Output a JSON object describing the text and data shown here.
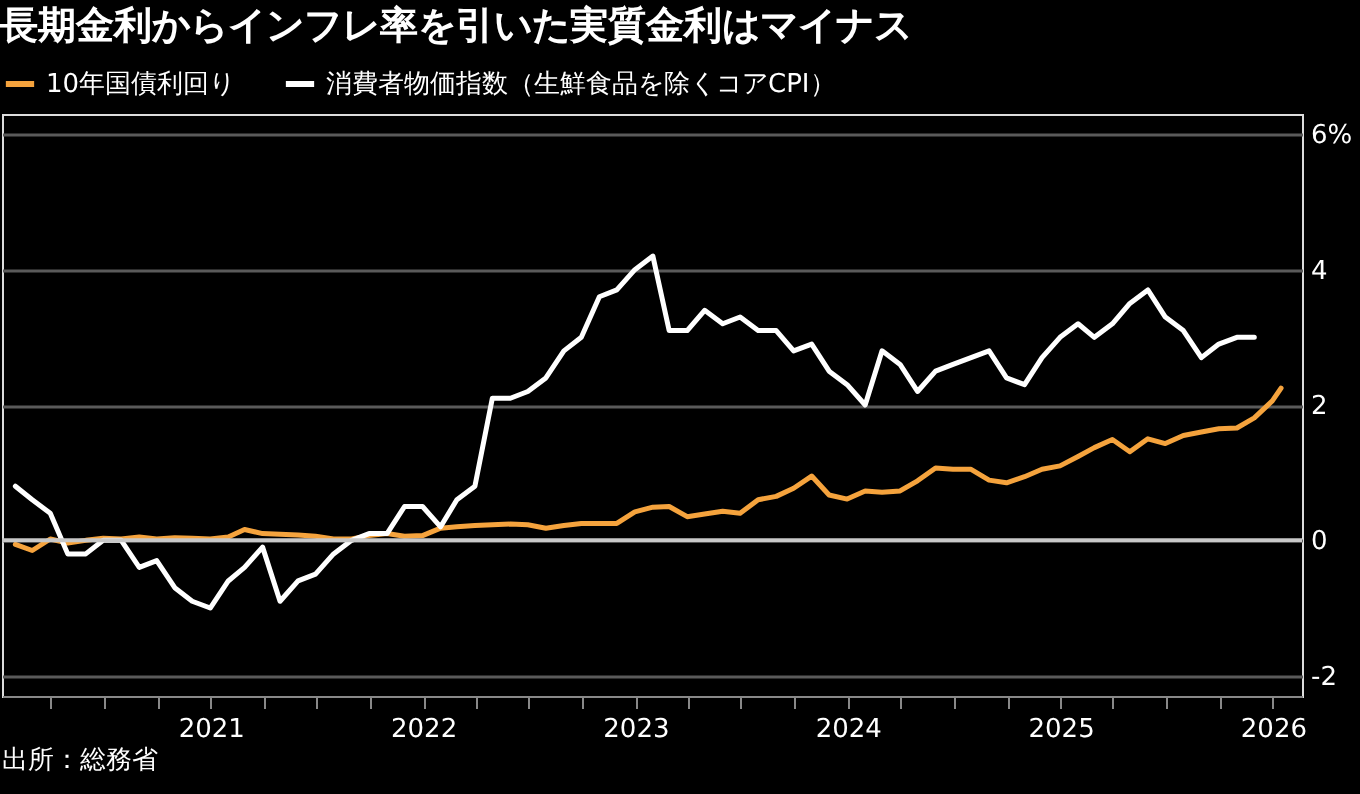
{
  "chart_data": {
    "type": "line",
    "title": "長期金利からインフレ率を引いた実質金利はマイナス",
    "annotations": [
      "出所：総務省"
    ],
    "legend": "top left",
    "grid": "y",
    "line_style": "solid",
    "marker": "none",
    "xlim": [
      "2020-01-08",
      "2026-02-20"
    ],
    "xticks": [
      {
        "value": "2020-04",
        "label": null
      },
      {
        "value": "2020-07",
        "label": null
      },
      {
        "value": "2020-10",
        "label": null
      },
      "2021",
      {
        "value": "2021-04",
        "label": null
      },
      {
        "value": "2021-07",
        "label": null
      },
      {
        "value": "2021-10",
        "label": null
      },
      "2022",
      {
        "value": "2022-04",
        "label": null
      },
      {
        "value": "2022-07",
        "label": null
      },
      {
        "value": "2022-10",
        "label": null
      },
      "2023",
      {
        "value": "2023-04",
        "label": null
      },
      {
        "value": "2023-07",
        "label": null
      },
      {
        "value": "2023-10",
        "label": null
      },
      "2024",
      {
        "value": "2024-04",
        "label": null
      },
      {
        "value": "2024-07",
        "label": null
      },
      {
        "value": "2024-10",
        "label": null
      },
      "2025",
      {
        "value": "2025-04",
        "label": null
      },
      {
        "value": "2025-07",
        "label": null
      },
      {
        "value": "2025-10",
        "label": null
      },
      "2026"
    ],
    "ylim": [
      -2.3,
      6.3
    ],
    "yticks": [
      -2,
      0,
      2,
      4,
      {
        "value": 6,
        "label": "6%"
      }
    ],
    "ref_lines": [
      {
        "axis": "y",
        "value": 0,
        "label": null,
        "color": "#c8c8c8"
      }
    ],
    "series": [
      {
        "name": "10年国債利回り",
        "color": "#f5a33d",
        "x": [
          "2020-01-31",
          "2020-02-29",
          "2020-03-31",
          "2020-04-30",
          "2020-05-31",
          "2020-06-30",
          "2020-07-31",
          "2020-08-31",
          "2020-09-30",
          "2020-10-31",
          "2020-11-30",
          "2020-12-31",
          "2021-01-31",
          "2021-02-28",
          "2021-03-31",
          "2021-04-30",
          "2021-05-31",
          "2021-06-30",
          "2021-07-31",
          "2021-08-31",
          "2021-09-30",
          "2021-10-31",
          "2021-11-30",
          "2021-12-31",
          "2022-01-31",
          "2022-02-28",
          "2022-03-31",
          "2022-04-30",
          "2022-05-31",
          "2022-06-30",
          "2022-07-31",
          "2022-08-31",
          "2022-09-30",
          "2022-10-31",
          "2022-11-30",
          "2022-12-31",
          "2023-01-31",
          "2023-02-28",
          "2023-03-31",
          "2023-04-30",
          "2023-05-31",
          "2023-06-30",
          "2023-07-31",
          "2023-08-31",
          "2023-09-30",
          "2023-10-31",
          "2023-11-30",
          "2023-12-31",
          "2024-01-31",
          "2024-02-29",
          "2024-03-31",
          "2024-04-30",
          "2024-05-31",
          "2024-06-30",
          "2024-07-31",
          "2024-08-31",
          "2024-09-30",
          "2024-10-31",
          "2024-11-30",
          "2024-12-31",
          "2025-01-31",
          "2025-02-28",
          "2025-03-31",
          "2025-04-30",
          "2025-05-31",
          "2025-06-30",
          "2025-07-31",
          "2025-08-31",
          "2025-09-30",
          "2025-10-31",
          "2025-11-30",
          "2025-12-31",
          "2026-01-15"
        ],
        "values": [
          -0.06,
          -0.15,
          0.02,
          -0.04,
          0.0,
          0.03,
          0.02,
          0.05,
          0.02,
          0.04,
          0.03,
          0.02,
          0.05,
          0.16,
          0.1,
          0.09,
          0.08,
          0.06,
          0.02,
          0.02,
          0.07,
          0.1,
          0.06,
          0.07,
          0.18,
          0.2,
          0.22,
          0.23,
          0.24,
          0.23,
          0.18,
          0.22,
          0.25,
          0.25,
          0.25,
          0.42,
          0.49,
          0.5,
          0.35,
          0.39,
          0.43,
          0.4,
          0.6,
          0.65,
          0.77,
          0.95,
          0.67,
          0.61,
          0.73,
          0.71,
          0.73,
          0.88,
          1.07,
          1.05,
          1.05,
          0.89,
          0.85,
          0.94,
          1.05,
          1.1,
          1.24,
          1.37,
          1.49,
          1.31,
          1.5,
          1.43,
          1.55,
          1.6,
          1.65,
          1.66,
          1.81,
          2.06,
          2.25
        ]
      },
      {
        "name": "消費者物価指数（生鮮食品を除くコアCPI）",
        "color": "#ffffff",
        "x": [
          "2020-01-31",
          "2020-02-29",
          "2020-03-31",
          "2020-04-30",
          "2020-05-31",
          "2020-06-30",
          "2020-07-31",
          "2020-08-31",
          "2020-09-30",
          "2020-10-31",
          "2020-11-30",
          "2020-12-31",
          "2021-01-31",
          "2021-02-28",
          "2021-03-31",
          "2021-04-30",
          "2021-05-31",
          "2021-06-30",
          "2021-07-31",
          "2021-08-31",
          "2021-09-30",
          "2021-10-31",
          "2021-11-30",
          "2021-12-31",
          "2022-01-31",
          "2022-02-28",
          "2022-03-31",
          "2022-04-30",
          "2022-05-31",
          "2022-06-30",
          "2022-07-31",
          "2022-08-31",
          "2022-09-30",
          "2022-10-31",
          "2022-11-30",
          "2022-12-31",
          "2023-01-31",
          "2023-02-28",
          "2023-03-31",
          "2023-04-30",
          "2023-05-31",
          "2023-06-30",
          "2023-07-31",
          "2023-08-31",
          "2023-09-30",
          "2023-10-31",
          "2023-11-30",
          "2023-12-31",
          "2024-01-31",
          "2024-02-29",
          "2024-03-31",
          "2024-04-30",
          "2024-05-31",
          "2024-06-30",
          "2024-07-31",
          "2024-08-31",
          "2024-09-30",
          "2024-10-31",
          "2024-11-30",
          "2024-12-31",
          "2025-01-31",
          "2025-02-28",
          "2025-03-31",
          "2025-04-30",
          "2025-05-31",
          "2025-06-30",
          "2025-07-31",
          "2025-08-31",
          "2025-09-30",
          "2025-10-31",
          "2025-11-30"
        ],
        "values": [
          0.8,
          0.6,
          0.4,
          -0.2,
          -0.2,
          0.0,
          0.0,
          -0.4,
          -0.3,
          -0.7,
          -0.9,
          -1.0,
          -0.6,
          -0.4,
          -0.1,
          -0.9,
          -0.6,
          -0.5,
          -0.2,
          0.0,
          0.1,
          0.1,
          0.5,
          0.5,
          0.2,
          0.6,
          0.8,
          2.1,
          2.1,
          2.2,
          2.4,
          2.8,
          3.0,
          3.6,
          3.7,
          4.0,
          4.2,
          3.1,
          3.1,
          3.4,
          3.2,
          3.3,
          3.1,
          3.1,
          2.8,
          2.9,
          2.5,
          2.3,
          2.0,
          2.8,
          2.6,
          2.2,
          2.5,
          2.6,
          2.7,
          2.8,
          2.4,
          2.3,
          2.7,
          3.0,
          3.2,
          3.0,
          3.2,
          3.5,
          3.7,
          3.3,
          3.1,
          2.7,
          2.9,
          3.0,
          3.0
        ]
      }
    ]
  }
}
